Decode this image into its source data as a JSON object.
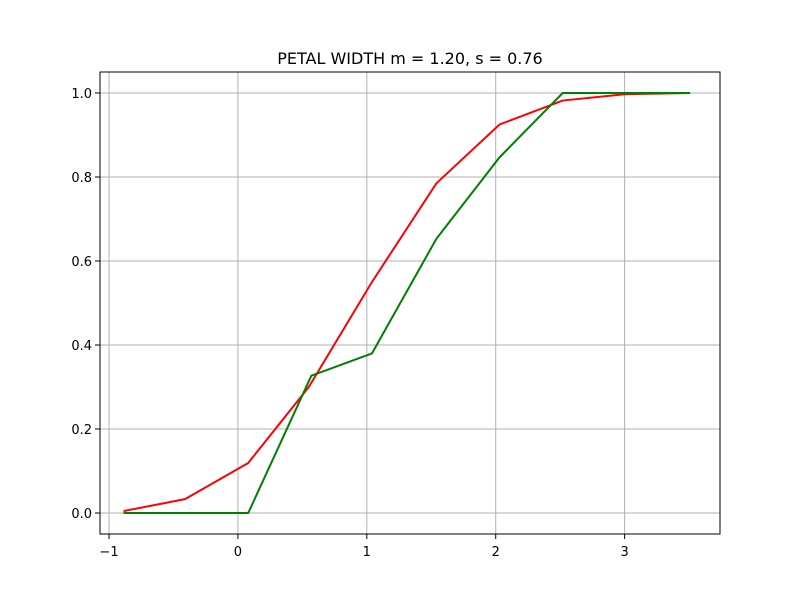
{
  "chart_data": {
    "type": "line",
    "title": "PETAL WIDTH  m = 1.20,  s = 0.76",
    "xlabel": "",
    "ylabel": "",
    "xlim": [
      -1.07,
      3.74
    ],
    "ylim": [
      -0.05,
      1.05
    ],
    "grid": true,
    "x_ticks": [
      -1,
      0,
      1,
      2,
      3
    ],
    "x_tick_labels": [
      "−1",
      "0",
      "1",
      "2",
      "3"
    ],
    "y_ticks": [
      0.0,
      0.2,
      0.4,
      0.6,
      0.8,
      1.0
    ],
    "y_tick_labels": [
      "0.0",
      "0.2",
      "0.4",
      "0.6",
      "0.8",
      "1.0"
    ],
    "series": [
      {
        "color": "#ff0000",
        "x": [
          -0.88,
          -0.41,
          0.08,
          0.55,
          1.04,
          1.54,
          2.03,
          2.52,
          3.0,
          3.5
        ],
        "y": [
          0.005,
          0.033,
          0.119,
          0.3,
          0.55,
          0.785,
          0.925,
          0.982,
          0.997,
          1.0
        ]
      },
      {
        "color": "#008000",
        "x": [
          -0.88,
          0.08,
          0.57,
          1.04,
          1.54,
          2.03,
          2.52,
          3.0,
          3.5
        ],
        "y": [
          0.0,
          0.0,
          0.327,
          0.38,
          0.653,
          0.847,
          1.0,
          1.0,
          1.0
        ]
      }
    ]
  }
}
